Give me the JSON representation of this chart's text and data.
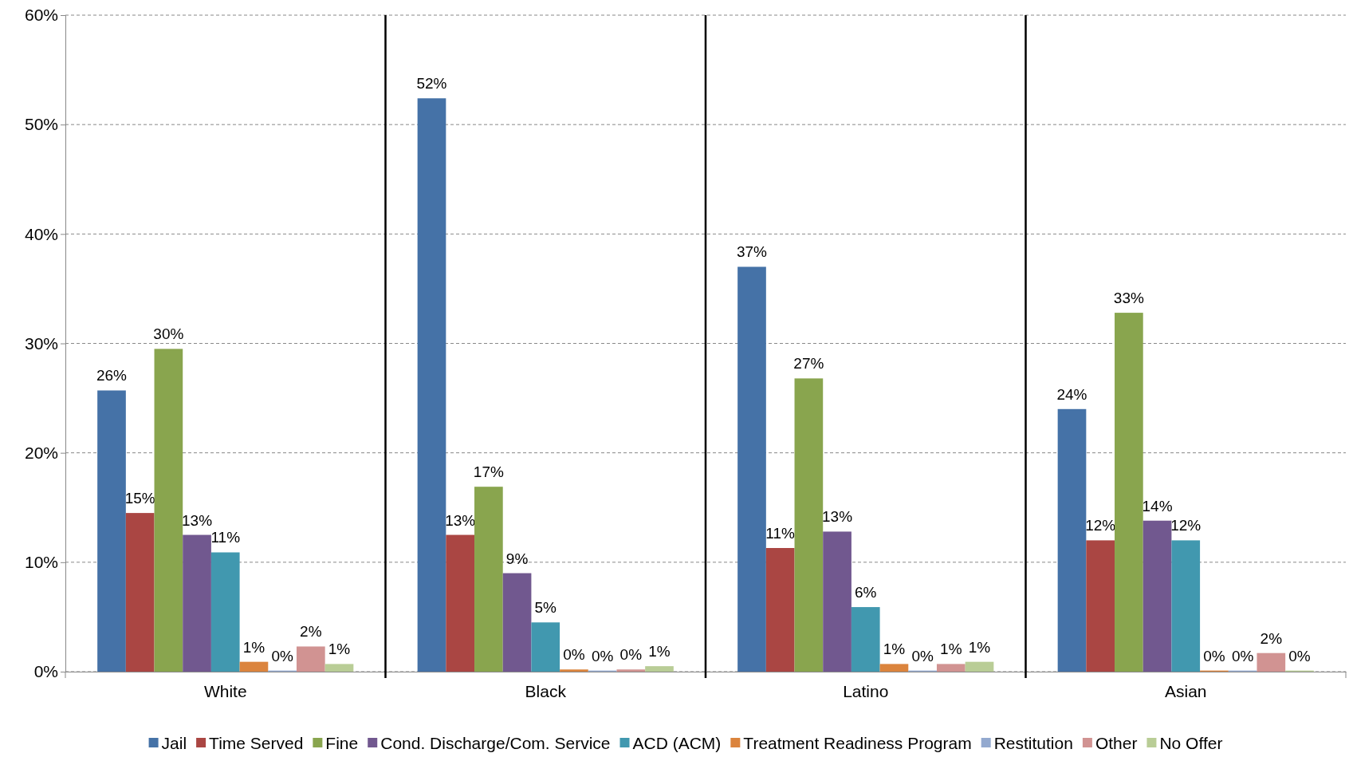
{
  "chart_data": {
    "type": "bar",
    "categories": [
      "White",
      "Black",
      "Latino",
      "Asian"
    ],
    "series": [
      {
        "name": "Jail",
        "color": "#4572a7",
        "values": [
          25.7,
          52.4,
          37.0,
          24.0
        ],
        "value_labels": [
          "26%",
          "52%",
          "37%",
          "24%"
        ]
      },
      {
        "name": "Time Served",
        "color": "#aa4643",
        "values": [
          14.5,
          12.5,
          11.3,
          12.0
        ],
        "value_labels": [
          "15%",
          "13%",
          "11%",
          "12%"
        ]
      },
      {
        "name": "Fine",
        "color": "#89a54e",
        "values": [
          29.5,
          16.9,
          26.8,
          32.8
        ],
        "value_labels": [
          "30%",
          "17%",
          "27%",
          "33%"
        ]
      },
      {
        "name": "Cond. Discharge/Com. Service",
        "color": "#71588f",
        "values": [
          12.5,
          9.0,
          12.8,
          13.8
        ],
        "value_labels": [
          "13%",
          "9%",
          "13%",
          "14%"
        ]
      },
      {
        "name": "ACD (ACM)",
        "color": "#4198af",
        "values": [
          10.9,
          4.5,
          5.9,
          12.0
        ],
        "value_labels": [
          "11%",
          "5%",
          "6%",
          "12%"
        ]
      },
      {
        "name": "Treatment Readiness Program",
        "color": "#db843d",
        "values": [
          0.9,
          0.2,
          0.7,
          0.1
        ],
        "value_labels": [
          "1%",
          "0%",
          "1%",
          "0%"
        ]
      },
      {
        "name": "Restitution",
        "color": "#93a9cf",
        "values": [
          0.1,
          0.1,
          0.1,
          0.1
        ],
        "value_labels": [
          "0%",
          "0%",
          "0%",
          "0%"
        ]
      },
      {
        "name": "Other",
        "color": "#d19392",
        "values": [
          2.3,
          0.2,
          0.7,
          1.7
        ],
        "value_labels": [
          "2%",
          "0%",
          "1%",
          "2%"
        ]
      },
      {
        "name": "No Offer",
        "color": "#b9cd96",
        "values": [
          0.7,
          0.5,
          0.9,
          0.1
        ],
        "value_labels": [
          "1%",
          "1%",
          "1%",
          "0%"
        ]
      }
    ],
    "ylim": [
      0,
      60
    ],
    "yticks": [
      {
        "value": 0,
        "label": "0%"
      },
      {
        "value": 10,
        "label": "10%"
      },
      {
        "value": 20,
        "label": "20%"
      },
      {
        "value": 30,
        "label": "30%"
      },
      {
        "value": 40,
        "label": "40%"
      },
      {
        "value": 50,
        "label": "50%"
      },
      {
        "value": 60,
        "label": "60%"
      }
    ],
    "grid": "y",
    "legend": "bottom"
  }
}
